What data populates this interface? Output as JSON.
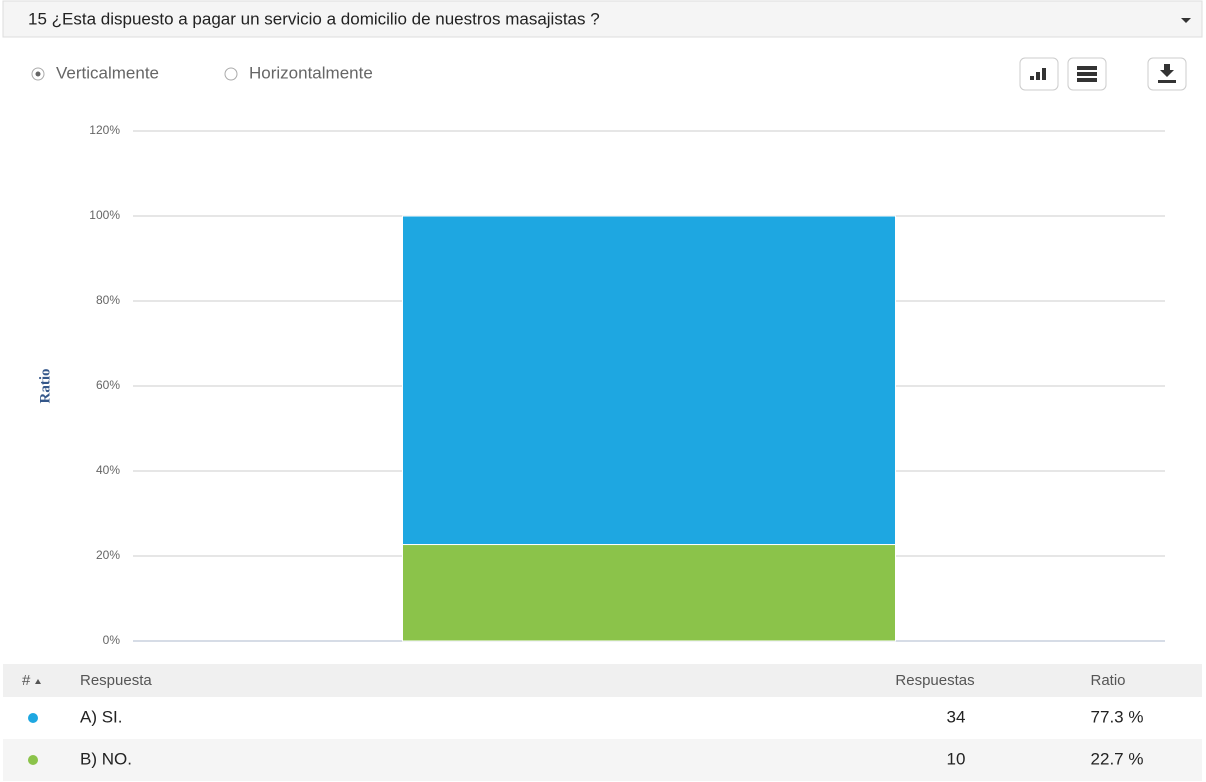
{
  "header": {
    "title": "15 ¿Esta dispuesto a pagar un servicio a domicilio de nuestros masajistas ?"
  },
  "controls": {
    "options": [
      "Verticalmente",
      "Horizontalmente"
    ]
  },
  "chart_data": {
    "type": "stacked_bar",
    "ylabel": "Ratio",
    "categories": [
      null
    ],
    "series": [
      {
        "name": "A) SI.",
        "color": "#1ea7e1",
        "values": [
          77.3
        ],
        "value_labels": [
          "77.3 %"
        ]
      },
      {
        "name": "B) NO.",
        "color": "#8bc34a",
        "values": [
          22.7
        ],
        "value_labels": [
          "22.7 %"
        ]
      }
    ],
    "ylim": [
      0,
      120
    ],
    "yticks": [
      {
        "value": 0,
        "label": "0%"
      },
      {
        "value": 20,
        "label": "20%"
      },
      {
        "value": 40,
        "label": "40%"
      },
      {
        "value": 60,
        "label": "60%"
      },
      {
        "value": 80,
        "label": "80%"
      },
      {
        "value": 100,
        "label": "100%"
      },
      {
        "value": 120,
        "label": "120%"
      }
    ],
    "grid": true
  },
  "table": {
    "headers": [
      "#",
      "Respuesta",
      "Respuestas",
      "Ratio"
    ],
    "counts": [
      34,
      10
    ]
  }
}
